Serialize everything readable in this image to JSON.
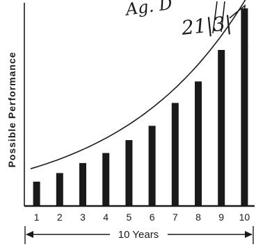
{
  "chart_data": {
    "type": "bar",
    "title": "",
    "xlabel": "10 Years",
    "ylabel": "Possible Performance",
    "categories": [
      "1",
      "2",
      "3",
      "4",
      "5",
      "6",
      "7",
      "8",
      "9",
      "10"
    ],
    "series": [
      {
        "values": [
          1.7,
          2.3,
          3.0,
          3.7,
          4.6,
          5.6,
          7.2,
          8.7,
          10.9,
          13.8
        ],
        "color": "#1a1a1a"
      }
    ],
    "trend_curve": {
      "type": "exponential",
      "start_value": 2.6,
      "end_value": 15.0,
      "color": "#1a1a1a"
    },
    "ylim": [
      0,
      14
    ],
    "grid": false,
    "legend": "none"
  },
  "annotations": {
    "handwriting_line1": "Ag. D",
    "handwriting_line2": "21|3|",
    "ink_color": "#1a1a1a"
  }
}
